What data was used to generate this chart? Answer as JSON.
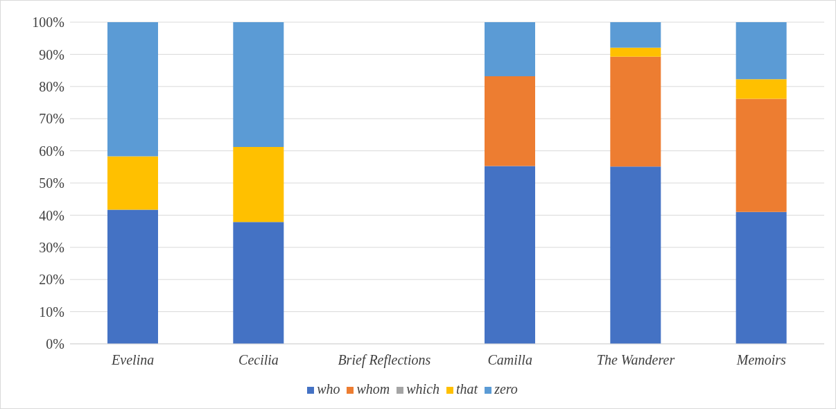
{
  "chart_data": {
    "type": "bar",
    "stacked": true,
    "categories": [
      "Evelina",
      "Cecilia",
      "Brief Reflections",
      "Camilla",
      "The Wanderer",
      "Memoirs"
    ],
    "series": [
      {
        "name": "who",
        "color": "#4472c4",
        "values": [
          41.7,
          37.9,
          null,
          55.3,
          55.1,
          41.0
        ]
      },
      {
        "name": "whom",
        "color": "#ed7d31",
        "values": [
          0,
          0,
          null,
          27.9,
          34.2,
          35.2
        ]
      },
      {
        "name": "which",
        "color": "#a5a5a5",
        "values": [
          0,
          0,
          null,
          0,
          0,
          0
        ]
      },
      {
        "name": "that",
        "color": "#ffc000",
        "values": [
          16.6,
          23.3,
          null,
          0,
          2.8,
          6.1
        ]
      },
      {
        "name": "zero",
        "color": "#5b9bd5",
        "values": [
          41.7,
          38.8,
          null,
          16.8,
          7.9,
          17.7
        ]
      }
    ],
    "ylim": [
      0,
      100
    ],
    "yticks": [
      {
        "value": 0,
        "label": "0%"
      },
      {
        "value": 10,
        "label": "10%"
      },
      {
        "value": 20,
        "label": "20%"
      },
      {
        "value": 30,
        "label": "30%"
      },
      {
        "value": 40,
        "label": "40%"
      },
      {
        "value": 50,
        "label": "50%"
      },
      {
        "value": 60,
        "label": "60%"
      },
      {
        "value": 70,
        "label": "70%"
      },
      {
        "value": 80,
        "label": "80%"
      },
      {
        "value": 90,
        "label": "90%"
      },
      {
        "value": 100,
        "label": "100%"
      }
    ],
    "grid": "y",
    "legend": "bottom"
  }
}
